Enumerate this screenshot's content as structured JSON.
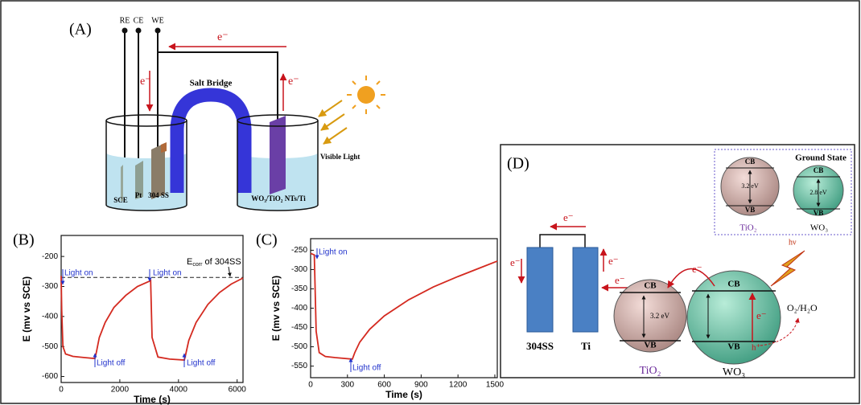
{
  "panel_labels": [
    "(A)",
    "(B)",
    "(C)",
    "(D)"
  ],
  "diagram_a": {
    "terminals": [
      "RE",
      "CE",
      "WE"
    ],
    "electron_labels": [
      "e⁻",
      "e⁻",
      "e⁻"
    ],
    "salt_bridge": "Salt Bridge",
    "light": "Visible Light",
    "electrodes": [
      "SCE",
      "Pt",
      "304 SS",
      "WO₃/TiO₂ NTs/Ti"
    ]
  },
  "diagram_d": {
    "electron_labels": [
      "e⁻",
      "e⁻",
      "e⁻",
      "e⁻",
      "e⁻",
      "e⁻"
    ],
    "plates": [
      "304SS",
      "Ti"
    ],
    "tio2": {
      "name": "TiO₂",
      "cb": "CB",
      "vb": "VB",
      "gap": "3.2 eV"
    },
    "wo3": {
      "name": "WO₃",
      "cb": "CB",
      "vb": "VB",
      "hole": "h⁺"
    },
    "photon": "hν",
    "product": "O₂/H₂O",
    "inset": {
      "title": "Ground State",
      "tio2": {
        "name": "TiO₂",
        "cb": "CB",
        "vb": "VB",
        "gap": "3.2 eV"
      },
      "wo3": {
        "name": "WO₃",
        "cb": "CB",
        "vb": "VB",
        "gap": "2.8 eV"
      }
    }
  },
  "chart_data": [
    {
      "type": "line",
      "x_label": "Time (s)",
      "y_label": "E (mv vs SCE)",
      "color": "#d42a20",
      "x": [
        0,
        20,
        60,
        150,
        400,
        800,
        1150,
        1200,
        1300,
        1500,
        1800,
        2200,
        2600,
        3000,
        3050,
        3100,
        3300,
        3700,
        4200,
        4250,
        4350,
        4600,
        5000,
        5400,
        5800,
        6200
      ],
      "values": [
        -265,
        -380,
        -500,
        -525,
        -533,
        -537,
        -540,
        -520,
        -470,
        -420,
        -370,
        -330,
        -300,
        -283,
        -280,
        -470,
        -535,
        -542,
        -545,
        -525,
        -480,
        -420,
        -360,
        -320,
        -292,
        -272
      ],
      "xlim": [
        0,
        6200
      ],
      "xticks": [
        0,
        2000,
        4000,
        6000
      ],
      "ylim": [
        -620,
        -130
      ],
      "yticks": [
        -200,
        -300,
        -400,
        -500,
        -600
      ],
      "reference_y": -270,
      "annotations": [
        "Light on",
        "Light off",
        "Light on",
        "Light off"
      ],
      "reference_label": [
        "E",
        "corr",
        " of 304SS"
      ]
    },
    {
      "type": "line",
      "x_label": "Time (s)",
      "y_label": "E (mv vs SCE)",
      "color": "#d42a20",
      "x": [
        0,
        30,
        45,
        70,
        120,
        200,
        340,
        360,
        400,
        480,
        600,
        800,
        1000,
        1200,
        1400,
        1520
      ],
      "values": [
        -258,
        -262,
        -460,
        -515,
        -525,
        -528,
        -532,
        -515,
        -488,
        -455,
        -420,
        -378,
        -345,
        -318,
        -293,
        -278
      ],
      "xlim": [
        0,
        1520
      ],
      "xticks": [
        0,
        300,
        600,
        900,
        1200,
        1500
      ],
      "ylim": [
        -580,
        -220
      ],
      "yticks": [
        -250,
        -300,
        -350,
        -400,
        -450,
        -500,
        -550
      ],
      "annotations": [
        "Light on",
        "Light off"
      ]
    }
  ]
}
